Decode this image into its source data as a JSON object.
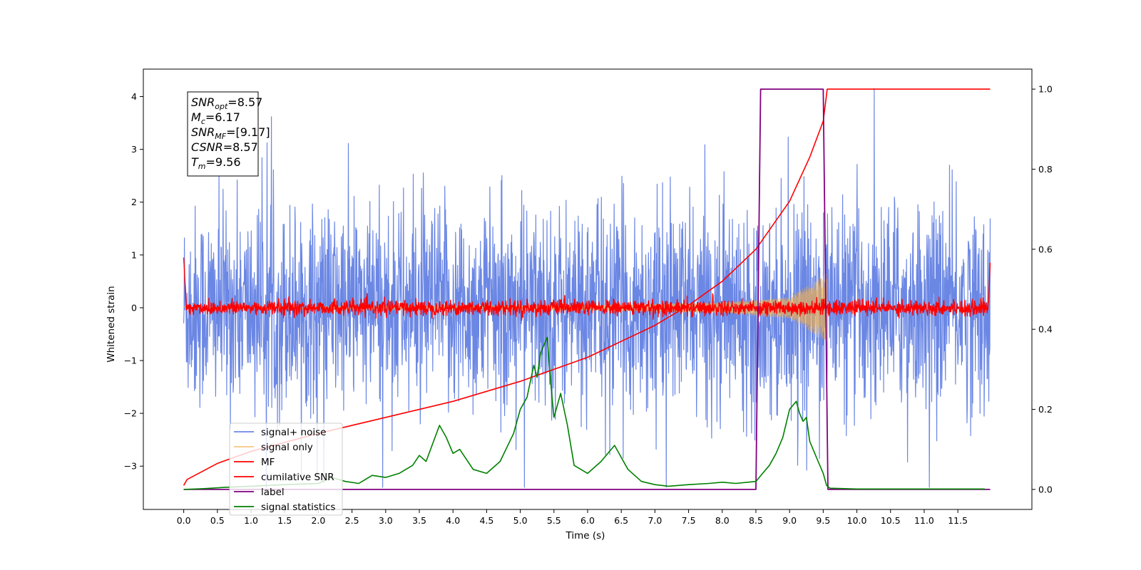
{
  "chart_data": {
    "type": "line",
    "xlabel": "Time (s)",
    "ylabel": "Whitened strain",
    "xlim": [
      -0.6,
      12.6
    ],
    "ylim": [
      -3.82,
      4.52
    ],
    "y2lim": [
      -0.05,
      1.05
    ],
    "x_ticks": [
      0.0,
      0.5,
      1.0,
      1.5,
      2.0,
      2.5,
      3.0,
      3.5,
      4.0,
      4.5,
      5.0,
      5.5,
      6.0,
      6.5,
      7.0,
      7.5,
      8.0,
      8.5,
      9.0,
      9.5,
      10.0,
      10.5,
      11.0,
      11.5
    ],
    "x_tick_labels": [
      "0.0",
      "0.5",
      "1.0",
      "1.5",
      "2.0",
      "2.5",
      "3.0",
      "3.5",
      "4.0",
      "4.5",
      "5.0",
      "5.5",
      "6.0",
      "6.5",
      "7.0",
      "7.5",
      "8.0",
      "8.5",
      "9.0",
      "9.5",
      "10.0",
      "10.5",
      "11.0",
      "11.5"
    ],
    "y_ticks": [
      -3,
      -2,
      -1,
      0,
      1,
      2,
      3,
      4
    ],
    "y_tick_labels": [
      "−3",
      "−2",
      "−1",
      "0",
      "1",
      "2",
      "3",
      "4"
    ],
    "y2_ticks": [
      0.0,
      0.2,
      0.4,
      0.6,
      0.8,
      1.0
    ],
    "y2_tick_labels": [
      "0.0",
      "0.2",
      "0.4",
      "0.6",
      "0.8",
      "1.0"
    ],
    "legend_placement": "lower-left",
    "series": [
      {
        "name": "signal+ noise",
        "color": "#6b87e4",
        "axis": "left",
        "style": "noise",
        "range": [
          -2.5,
          2.5
        ],
        "x_range": [
          0.0,
          11.98
        ]
      },
      {
        "name": "signal only",
        "color": "#f5b04a",
        "axis": "left",
        "style": "chirp",
        "amplitude_envelope": [
          [
            0.0,
            0.02
          ],
          [
            6.0,
            0.05
          ],
          [
            8.0,
            0.1
          ],
          [
            9.0,
            0.2
          ],
          [
            9.56,
            0.65
          ]
        ]
      },
      {
        "name": "MF",
        "color": "#ff0000",
        "axis": "left",
        "style": "noise",
        "range": [
          -0.15,
          0.15
        ],
        "x_range": [
          0.0,
          11.98
        ]
      },
      {
        "name": "cumilative SNR",
        "color": "#ff0000",
        "axis": "right",
        "x": [
          0.0,
          0.05,
          0.5,
          1.0,
          2.0,
          3.0,
          4.0,
          5.0,
          6.0,
          7.0,
          7.5,
          8.0,
          8.5,
          9.0,
          9.3,
          9.5,
          9.56,
          11.98
        ],
        "y": [
          0.01,
          0.025,
          0.065,
          0.095,
          0.14,
          0.18,
          0.22,
          0.27,
          0.33,
          0.41,
          0.46,
          0.52,
          0.6,
          0.72,
          0.83,
          0.92,
          1.0,
          1.0
        ]
      },
      {
        "name": "label",
        "color": "#800080",
        "axis": "right",
        "x": [
          0.0,
          8.5,
          8.57,
          9.5,
          9.57,
          11.98
        ],
        "y": [
          0.0,
          0.0,
          1.0,
          1.0,
          0.0,
          0.0
        ]
      },
      {
        "name": "signal statistics",
        "color": "#008000",
        "axis": "right",
        "x": [
          0.0,
          0.3,
          0.6,
          1.0,
          1.5,
          2.0,
          2.2,
          2.4,
          2.6,
          2.8,
          3.0,
          3.2,
          3.4,
          3.5,
          3.6,
          3.8,
          3.9,
          4.0,
          4.1,
          4.3,
          4.5,
          4.7,
          4.9,
          5.0,
          5.1,
          5.2,
          5.25,
          5.3,
          5.4,
          5.45,
          5.5,
          5.6,
          5.7,
          5.75,
          5.8,
          5.9,
          6.0,
          6.2,
          6.4,
          6.5,
          6.6,
          6.8,
          7.0,
          7.2,
          7.5,
          7.8,
          8.0,
          8.2,
          8.5,
          8.6,
          8.7,
          8.8,
          8.9,
          9.0,
          9.05,
          9.1,
          9.15,
          9.2,
          9.25,
          9.3,
          9.4,
          9.5,
          9.55,
          9.6,
          10.0,
          11.0,
          11.9
        ],
        "y": [
          0.0,
          0.002,
          0.005,
          0.008,
          0.012,
          0.015,
          0.03,
          0.02,
          0.015,
          0.035,
          0.03,
          0.04,
          0.06,
          0.085,
          0.07,
          0.16,
          0.13,
          0.09,
          0.1,
          0.05,
          0.04,
          0.07,
          0.14,
          0.2,
          0.23,
          0.31,
          0.28,
          0.34,
          0.38,
          0.27,
          0.18,
          0.24,
          0.16,
          0.11,
          0.06,
          0.05,
          0.04,
          0.07,
          0.11,
          0.08,
          0.05,
          0.02,
          0.012,
          0.008,
          0.012,
          0.015,
          0.018,
          0.015,
          0.02,
          0.04,
          0.06,
          0.09,
          0.13,
          0.2,
          0.21,
          0.22,
          0.19,
          0.17,
          0.18,
          0.12,
          0.08,
          0.04,
          0.01,
          0.003,
          0.001,
          0.001,
          0.001
        ]
      }
    ],
    "annotation": {
      "lines": [
        {
          "main": "SNR",
          "sub": "opt",
          "value": "=8.57"
        },
        {
          "main": "M",
          "sub": "c",
          "value": "=6.17"
        },
        {
          "main": "SNR",
          "sub": "MF",
          "value": "=[9.17]"
        },
        {
          "main": "CSNR",
          "sub": "",
          "value": "=8.57"
        },
        {
          "main": "T",
          "sub": "m",
          "value": "=9.56"
        }
      ]
    }
  }
}
